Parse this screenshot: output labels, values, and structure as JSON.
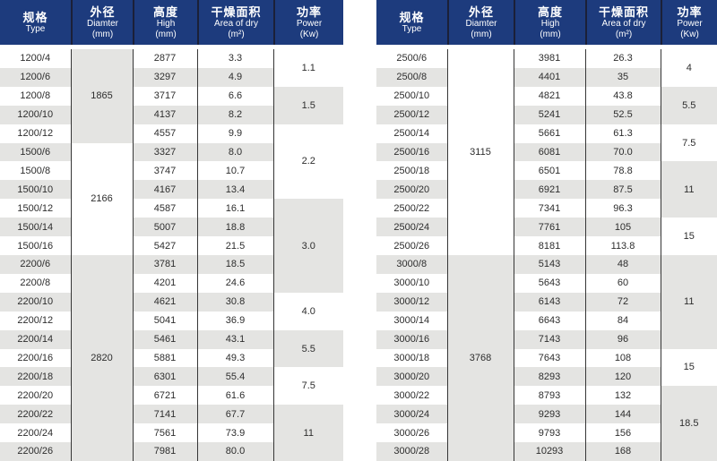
{
  "colors": {
    "header_bg": "#1d3b7d",
    "header_text": "#ffffff",
    "stripe_gray": "#e4e4e2",
    "grid_line": "#363636",
    "body_text": "#2d2d2d"
  },
  "columns": [
    {
      "zh": "规格",
      "en": "Type",
      "unit": ""
    },
    {
      "zh": "外径",
      "en": "Diamter",
      "unit": "(mm)"
    },
    {
      "zh": "高度",
      "en": "High",
      "unit": "(mm)"
    },
    {
      "zh": "干燥面积",
      "en": "Area of dry",
      "unit": "(m²)"
    },
    {
      "zh": "功率",
      "en": "Power",
      "unit": "(Kw)"
    }
  ],
  "tables": [
    {
      "rows": [
        {
          "type": "1200/4",
          "high": "2877",
          "area": "3.3"
        },
        {
          "type": "1200/6",
          "high": "3297",
          "area": "4.9"
        },
        {
          "type": "1200/8",
          "high": "3717",
          "area": "6.6"
        },
        {
          "type": "1200/10",
          "high": "4137",
          "area": "8.2"
        },
        {
          "type": "1200/12",
          "high": "4557",
          "area": "9.9"
        },
        {
          "type": "1500/6",
          "high": "3327",
          "area": "8.0"
        },
        {
          "type": "1500/8",
          "high": "3747",
          "area": "10.7"
        },
        {
          "type": "1500/10",
          "high": "4167",
          "area": "13.4"
        },
        {
          "type": "1500/12",
          "high": "4587",
          "area": "16.1"
        },
        {
          "type": "1500/14",
          "high": "5007",
          "area": "18.8"
        },
        {
          "type": "1500/16",
          "high": "5427",
          "area": "21.5"
        },
        {
          "type": "2200/6",
          "high": "3781",
          "area": "18.5"
        },
        {
          "type": "2200/8",
          "high": "4201",
          "area": "24.6"
        },
        {
          "type": "2200/10",
          "high": "4621",
          "area": "30.8"
        },
        {
          "type": "2200/12",
          "high": "5041",
          "area": "36.9"
        },
        {
          "type": "2200/14",
          "high": "5461",
          "area": "43.1"
        },
        {
          "type": "2200/16",
          "high": "5881",
          "area": "49.3"
        },
        {
          "type": "2200/18",
          "high": "6301",
          "area": "55.4"
        },
        {
          "type": "2200/20",
          "high": "6721",
          "area": "61.6"
        },
        {
          "type": "2200/22",
          "high": "7141",
          "area": "67.7"
        },
        {
          "type": "2200/24",
          "high": "7561",
          "area": "73.9"
        },
        {
          "type": "2200/26",
          "high": "7981",
          "area": "80.0"
        }
      ],
      "diameter_groups": [
        {
          "value": "1865",
          "span": 5,
          "shade": "gray"
        },
        {
          "value": "2166",
          "span": 6,
          "shade": "white"
        },
        {
          "value": "2820",
          "span": 11,
          "shade": "gray"
        }
      ],
      "power_groups": [
        {
          "value": "1.1",
          "span": 2,
          "shade": "white"
        },
        {
          "value": "1.5",
          "span": 2,
          "shade": "gray"
        },
        {
          "value": "2.2",
          "span": 4,
          "shade": "white"
        },
        {
          "value": "3.0",
          "span": 5,
          "shade": "gray"
        },
        {
          "value": "4.0",
          "span": 2,
          "shade": "white"
        },
        {
          "value": "5.5",
          "span": 2,
          "shade": "gray"
        },
        {
          "value": "7.5",
          "span": 2,
          "shade": "white"
        },
        {
          "value": "11",
          "span": 3,
          "shade": "gray"
        }
      ]
    },
    {
      "rows": [
        {
          "type": "2500/6",
          "high": "3981",
          "area": "26.3"
        },
        {
          "type": "2500/8",
          "high": "4401",
          "area": "35"
        },
        {
          "type": "2500/10",
          "high": "4821",
          "area": "43.8"
        },
        {
          "type": "2500/12",
          "high": "5241",
          "area": "52.5"
        },
        {
          "type": "2500/14",
          "high": "5661",
          "area": "61.3"
        },
        {
          "type": "2500/16",
          "high": "6081",
          "area": "70.0"
        },
        {
          "type": "2500/18",
          "high": "6501",
          "area": "78.8"
        },
        {
          "type": "2500/20",
          "high": "6921",
          "area": "87.5"
        },
        {
          "type": "2500/22",
          "high": "7341",
          "area": "96.3"
        },
        {
          "type": "2500/24",
          "high": "7761",
          "area": "105"
        },
        {
          "type": "2500/26",
          "high": "8181",
          "area": "113.8"
        },
        {
          "type": "3000/8",
          "high": "5143",
          "area": "48"
        },
        {
          "type": "3000/10",
          "high": "5643",
          "area": "60"
        },
        {
          "type": "3000/12",
          "high": "6143",
          "area": "72"
        },
        {
          "type": "3000/14",
          "high": "6643",
          "area": "84"
        },
        {
          "type": "3000/16",
          "high": "7143",
          "area": "96"
        },
        {
          "type": "3000/18",
          "high": "7643",
          "area": "108"
        },
        {
          "type": "3000/20",
          "high": "8293",
          "area": "120"
        },
        {
          "type": "3000/22",
          "high": "8793",
          "area": "132"
        },
        {
          "type": "3000/24",
          "high": "9293",
          "area": "144"
        },
        {
          "type": "3000/26",
          "high": "9793",
          "area": "156"
        },
        {
          "type": "3000/28",
          "high": "10293",
          "area": "168"
        }
      ],
      "diameter_groups": [
        {
          "value": "3115",
          "span": 11,
          "shade": "white"
        },
        {
          "value": "3768",
          "span": 11,
          "shade": "gray"
        }
      ],
      "power_groups": [
        {
          "value": "4",
          "span": 2,
          "shade": "white"
        },
        {
          "value": "5.5",
          "span": 2,
          "shade": "gray"
        },
        {
          "value": "7.5",
          "span": 2,
          "shade": "white"
        },
        {
          "value": "11",
          "span": 3,
          "shade": "gray"
        },
        {
          "value": "15",
          "span": 2,
          "shade": "white"
        },
        {
          "value": "11",
          "span": 5,
          "shade": "gray"
        },
        {
          "value": "15",
          "span": 2,
          "shade": "white"
        },
        {
          "value": "18.5",
          "span": 4,
          "shade": "gray"
        }
      ]
    }
  ],
  "layout": {
    "left_col_widths": [
      79,
      69,
      72,
      85,
      78
    ],
    "right_col_widths": [
      79,
      74,
      80,
      84,
      63
    ]
  }
}
